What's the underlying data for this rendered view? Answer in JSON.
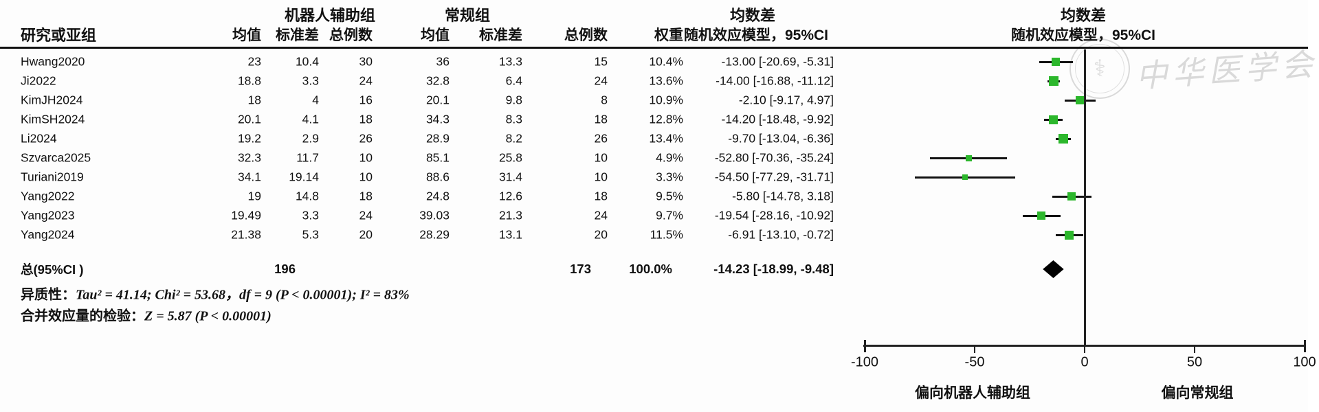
{
  "header": {
    "study": "研究或亚组",
    "group1": "机器人辅助组",
    "group2": "常规组",
    "md_left": "均数差",
    "md_right": "均数差",
    "model_left": "随机效应模型，95%CI",
    "model_right": "随机效应模型，95%CI",
    "cols": {
      "mean1": "均值",
      "sd1": "标准差",
      "n1": "总例数",
      "mean2": "均值",
      "sd2": "标准差",
      "n2": "总例数",
      "weight": "权重"
    }
  },
  "chart_data": {
    "type": "forest",
    "effect_measure": "均数差",
    "model": "随机效应模型，95%CI",
    "xlim": [
      -100,
      100
    ],
    "x_ticks": [
      -100,
      -50,
      0,
      50,
      100
    ],
    "favors_left": "偏向机器人辅助组",
    "favors_right": "偏向常规组",
    "marker_color": "#2cb72c",
    "line_color": "#111111",
    "studies": [
      {
        "name": "Hwang2020",
        "mean1": "23",
        "sd1": "10.4",
        "n1": "30",
        "mean2": "36",
        "sd2": "13.3",
        "n2": "15",
        "weight": "10.4%",
        "ci_text": "-13.00 [-20.69, -5.31]",
        "est": -13.0,
        "lo": -20.69,
        "hi": -5.31,
        "w": 10.4
      },
      {
        "name": "Ji2022",
        "mean1": "18.8",
        "sd1": "3.3",
        "n1": "24",
        "mean2": "32.8",
        "sd2": "6.4",
        "n2": "24",
        "weight": "13.6%",
        "ci_text": "-14.00 [-16.88, -11.12]",
        "est": -14.0,
        "lo": -16.88,
        "hi": -11.12,
        "w": 13.6
      },
      {
        "name": "KimJH2024",
        "mean1": "18",
        "sd1": "4",
        "n1": "16",
        "mean2": "20.1",
        "sd2": "9.8",
        "n2": "8",
        "weight": "10.9%",
        "ci_text": "-2.10 [-9.17, 4.97]",
        "est": -2.1,
        "lo": -9.17,
        "hi": 4.97,
        "w": 10.9
      },
      {
        "name": "KimSH2024",
        "mean1": "20.1",
        "sd1": "4.1",
        "n1": "18",
        "mean2": "34.3",
        "sd2": "8.3",
        "n2": "18",
        "weight": "12.8%",
        "ci_text": "-14.20 [-18.48, -9.92]",
        "est": -14.2,
        "lo": -18.48,
        "hi": -9.92,
        "w": 12.8
      },
      {
        "name": "Li2024",
        "mean1": "19.2",
        "sd1": "2.9",
        "n1": "26",
        "mean2": "28.9",
        "sd2": "8.2",
        "n2": "26",
        "weight": "13.4%",
        "ci_text": "-9.70 [-13.04, -6.36]",
        "est": -9.7,
        "lo": -13.04,
        "hi": -6.36,
        "w": 13.4
      },
      {
        "name": "Szvarca2025",
        "mean1": "32.3",
        "sd1": "11.7",
        "n1": "10",
        "mean2": "85.1",
        "sd2": "25.8",
        "n2": "10",
        "weight": "4.9%",
        "ci_text": "-52.80 [-70.36, -35.24]",
        "est": -52.8,
        "lo": -70.36,
        "hi": -35.24,
        "w": 4.9
      },
      {
        "name": "Turiani2019",
        "mean1": "34.1",
        "sd1": "19.14",
        "n1": "10",
        "mean2": "88.6",
        "sd2": "31.4",
        "n2": "10",
        "weight": "3.3%",
        "ci_text": "-54.50 [-77.29, -31.71]",
        "est": -54.5,
        "lo": -77.29,
        "hi": -31.71,
        "w": 3.3
      },
      {
        "name": "Yang2022",
        "mean1": "19",
        "sd1": "14.8",
        "n1": "18",
        "mean2": "24.8",
        "sd2": "12.6",
        "n2": "18",
        "weight": "9.5%",
        "ci_text": "-5.80 [-14.78, 3.18]",
        "est": -5.8,
        "lo": -14.78,
        "hi": 3.18,
        "w": 9.5
      },
      {
        "name": "Yang2023",
        "mean1": "19.49",
        "sd1": "3.3",
        "n1": "24",
        "mean2": "39.03",
        "sd2": "21.3",
        "n2": "24",
        "weight": "9.7%",
        "ci_text": "-19.54 [-28.16, -10.92]",
        "est": -19.54,
        "lo": -28.16,
        "hi": -10.92,
        "w": 9.7
      },
      {
        "name": "Yang2024",
        "mean1": "21.38",
        "sd1": "5.3",
        "n1": "20",
        "mean2": "28.29",
        "sd2": "13.1",
        "n2": "20",
        "weight": "11.5%",
        "ci_text": "-6.91 [-13.10, -0.72]",
        "est": -6.91,
        "lo": -13.1,
        "hi": -0.72,
        "w": 11.5
      }
    ],
    "total": {
      "label": "总(95%CI )",
      "n1": "196",
      "n2": "173",
      "weight": "100.0%",
      "ci_text": "-14.23 [-18.99, -9.48]",
      "est": -14.23,
      "lo": -18.99,
      "hi": -9.48
    }
  },
  "footer": {
    "het_label": "异质性：",
    "het_formula": "Tau² = 41.14; Chi² = 53.68，df = 9 (P < 0.00001); I² = 83%",
    "z_label": "合并效应量的检验：",
    "z_formula": "Z = 5.87 (P < 0.00001)"
  },
  "watermark": {
    "text": "中华医学会",
    "symbol": "⚕"
  }
}
